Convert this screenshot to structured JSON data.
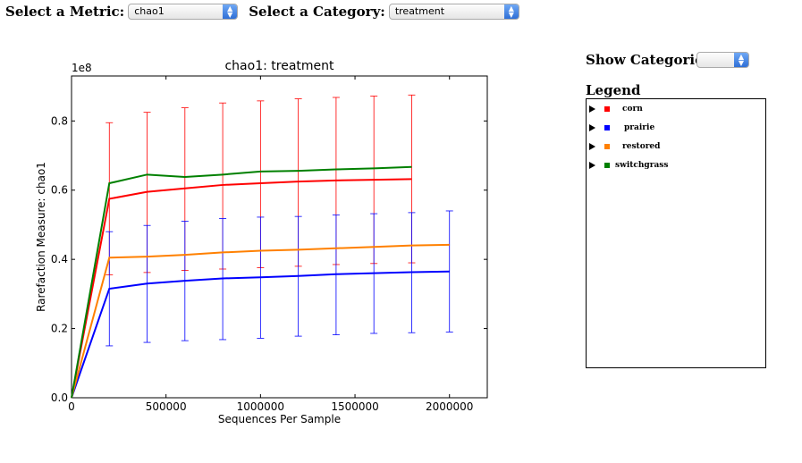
{
  "controls": {
    "metric_label": "Select a Metric:",
    "metric_value": "chao1",
    "category_label": "Select a Category:",
    "category_value": "treatment",
    "show_categories_label": "Show Categories:",
    "show_categories_value": ""
  },
  "legend": {
    "title": "Legend",
    "items": [
      {
        "label": "corn",
        "color": "#ff0000"
      },
      {
        "label": "prairie",
        "color": "#0000ff"
      },
      {
        "label": "restored",
        "color": "#ff8000"
      },
      {
        "label": "switchgrass",
        "color": "#008000"
      }
    ]
  },
  "chart_data": {
    "type": "line",
    "title": "chao1: treatment",
    "xlabel": "Sequences Per Sample",
    "ylabel": "Rarefaction Measure: chao1",
    "offset_label": "1e8",
    "xlim": [
      0,
      2200000
    ],
    "ylim": [
      0,
      0.93
    ],
    "x_ticks": [
      0,
      500000,
      1000000,
      1500000,
      2000000
    ],
    "x_tick_labels": [
      "0",
      "500000",
      "1000000",
      "1500000",
      "2000000"
    ],
    "y_ticks": [
      0,
      0.2,
      0.4,
      0.6,
      0.8
    ],
    "y_tick_labels": [
      "0.0",
      "0.2",
      "0.4",
      "0.6",
      "0.8"
    ],
    "grid": false,
    "series": [
      {
        "name": "corn",
        "color": "#ff0000",
        "x": [
          0,
          200000,
          400000,
          600000,
          800000,
          1000000,
          1200000,
          1400000,
          1600000,
          1800000
        ],
        "y": [
          0,
          0.575,
          0.595,
          0.605,
          0.615,
          0.62,
          0.625,
          0.628,
          0.63,
          0.632
        ],
        "err_hi": [
          0,
          0.795,
          0.825,
          0.838,
          0.852,
          0.858,
          0.864,
          0.868,
          0.872,
          0.875
        ],
        "err_lo": [
          0,
          0.355,
          0.362,
          0.368,
          0.372,
          0.376,
          0.38,
          0.385,
          0.388,
          0.39
        ]
      },
      {
        "name": "prairie",
        "color": "#0000ff",
        "x": [
          0,
          200000,
          400000,
          600000,
          800000,
          1000000,
          1200000,
          1400000,
          1600000,
          1800000,
          2000000
        ],
        "y": [
          0,
          0.315,
          0.33,
          0.338,
          0.345,
          0.348,
          0.352,
          0.357,
          0.36,
          0.363,
          0.365
        ],
        "err_hi": [
          0,
          0.48,
          0.498,
          0.51,
          0.518,
          0.522,
          0.524,
          0.528,
          0.532,
          0.535,
          0.54
        ],
        "err_lo": [
          0,
          0.15,
          0.16,
          0.165,
          0.168,
          0.172,
          0.178,
          0.182,
          0.186,
          0.188,
          0.19
        ]
      },
      {
        "name": "restored",
        "color": "#ff8000",
        "x": [
          0,
          200000,
          400000,
          600000,
          800000,
          1000000,
          1200000,
          1400000,
          1600000,
          1800000,
          2000000
        ],
        "y": [
          0,
          0.405,
          0.408,
          0.413,
          0.42,
          0.425,
          0.428,
          0.432,
          0.436,
          0.44,
          0.442
        ]
      },
      {
        "name": "switchgrass",
        "color": "#008000",
        "x": [
          0,
          200000,
          400000,
          600000,
          800000,
          1000000,
          1200000,
          1400000,
          1600000,
          1800000
        ],
        "y": [
          0,
          0.62,
          0.645,
          0.638,
          0.645,
          0.654,
          0.656,
          0.66,
          0.663,
          0.667
        ]
      }
    ]
  }
}
